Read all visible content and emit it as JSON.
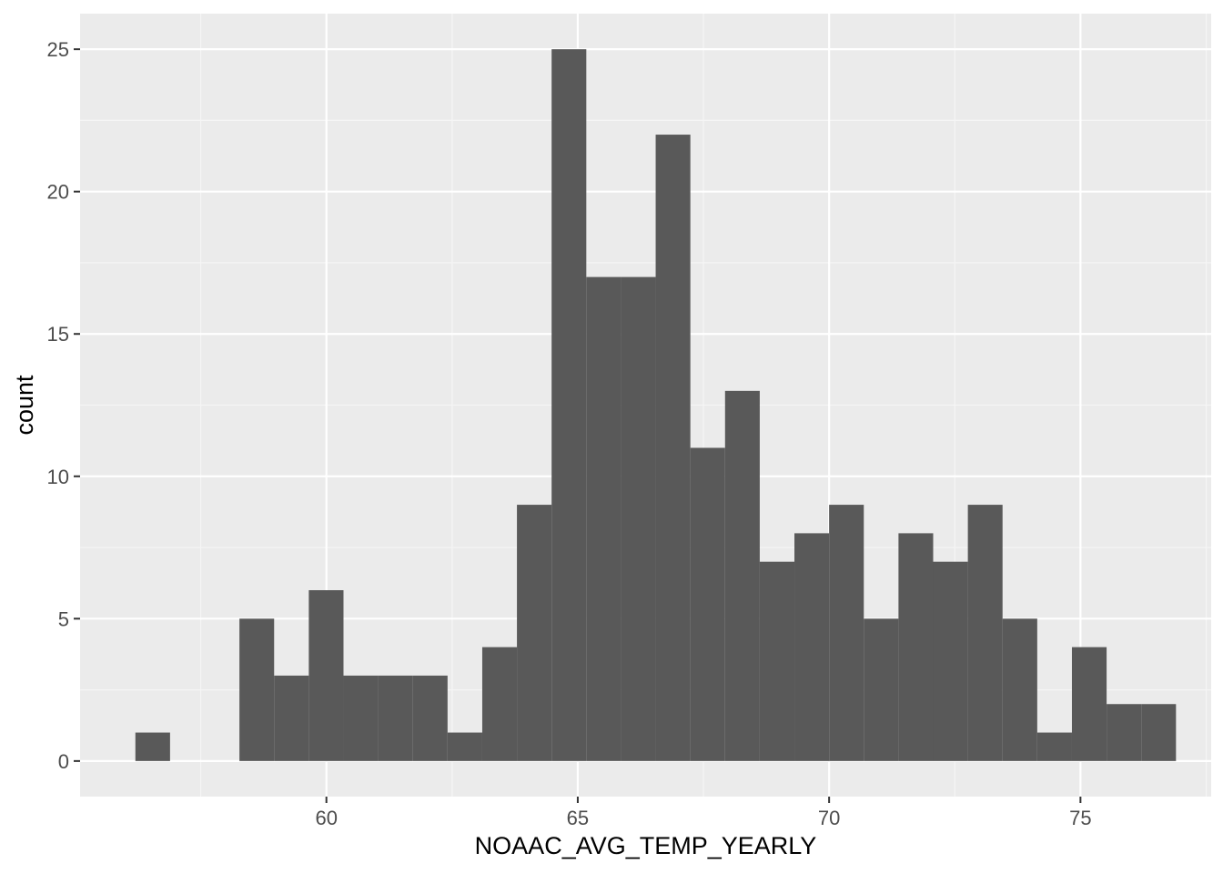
{
  "chart_data": {
    "type": "histogram",
    "xlabel": "NOAAC_AVG_TEMP_YEARLY",
    "ylabel": "count",
    "xlim": [
      55.1,
      77.6
    ],
    "ylim": [
      -1.25,
      26.25
    ],
    "x_ticks": [
      60,
      65,
      70,
      75
    ],
    "y_ticks": [
      0,
      5,
      10,
      15,
      20,
      25
    ],
    "x_tick_labels": [
      "60",
      "65",
      "70",
      "75"
    ],
    "y_tick_labels": [
      "0",
      "5",
      "10",
      "15",
      "20",
      "25"
    ],
    "grid": true,
    "bin_width": 0.69,
    "bins": [
      {
        "x0": 56.2,
        "x1": 56.89,
        "count": 1
      },
      {
        "x0": 56.89,
        "x1": 57.58,
        "count": 0
      },
      {
        "x0": 57.58,
        "x1": 58.27,
        "count": 0
      },
      {
        "x0": 58.27,
        "x1": 58.96,
        "count": 5
      },
      {
        "x0": 58.96,
        "x1": 59.65,
        "count": 3
      },
      {
        "x0": 59.65,
        "x1": 60.34,
        "count": 6
      },
      {
        "x0": 60.34,
        "x1": 61.03,
        "count": 3
      },
      {
        "x0": 61.03,
        "x1": 61.72,
        "count": 3
      },
      {
        "x0": 61.72,
        "x1": 62.41,
        "count": 3
      },
      {
        "x0": 62.41,
        "x1": 63.1,
        "count": 1
      },
      {
        "x0": 63.1,
        "x1": 63.79,
        "count": 4
      },
      {
        "x0": 63.79,
        "x1": 64.48,
        "count": 9
      },
      {
        "x0": 64.48,
        "x1": 65.17,
        "count": 25
      },
      {
        "x0": 65.17,
        "x1": 65.86,
        "count": 17
      },
      {
        "x0": 65.86,
        "x1": 66.55,
        "count": 17
      },
      {
        "x0": 66.55,
        "x1": 67.24,
        "count": 22
      },
      {
        "x0": 67.24,
        "x1": 67.93,
        "count": 11
      },
      {
        "x0": 67.93,
        "x1": 68.62,
        "count": 13
      },
      {
        "x0": 68.62,
        "x1": 69.31,
        "count": 7
      },
      {
        "x0": 69.31,
        "x1": 70.0,
        "count": 8
      },
      {
        "x0": 70.0,
        "x1": 70.69,
        "count": 9
      },
      {
        "x0": 70.69,
        "x1": 71.38,
        "count": 5
      },
      {
        "x0": 71.38,
        "x1": 72.07,
        "count": 8
      },
      {
        "x0": 72.07,
        "x1": 72.76,
        "count": 7
      },
      {
        "x0": 72.76,
        "x1": 73.45,
        "count": 9
      },
      {
        "x0": 73.45,
        "x1": 74.14,
        "count": 5
      },
      {
        "x0": 74.14,
        "x1": 74.83,
        "count": 1
      },
      {
        "x0": 74.83,
        "x1": 75.52,
        "count": 4
      },
      {
        "x0": 75.52,
        "x1": 76.21,
        "count": 2
      },
      {
        "x0": 76.21,
        "x1": 76.9,
        "count": 2
      }
    ],
    "colors": {
      "panel_background": "#ebebeb",
      "grid_major": "#ffffff",
      "grid_minor": "#f5f5f5",
      "bar_fill": "#595959",
      "tick_text": "#4d4d4d",
      "axis_title": "#000000",
      "tick_mark": "#333333"
    }
  }
}
